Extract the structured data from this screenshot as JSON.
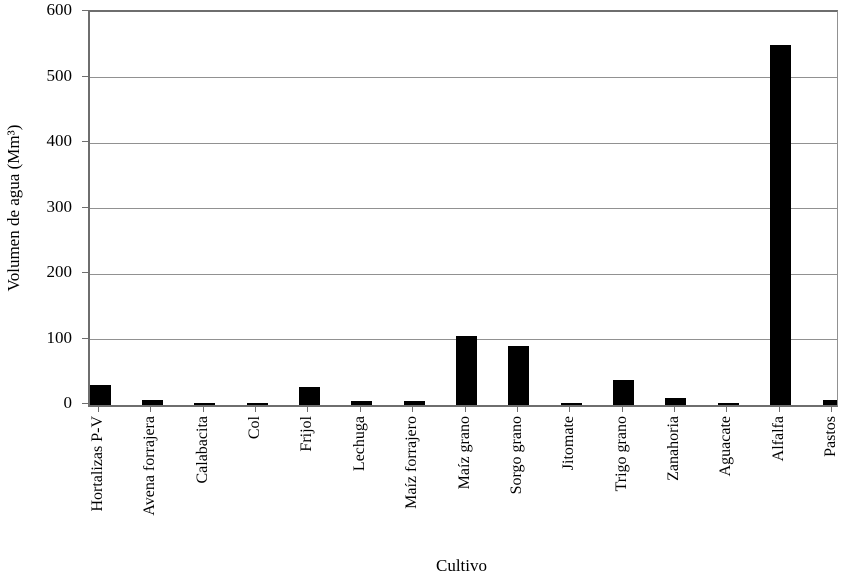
{
  "chart_data": {
    "type": "bar",
    "title": "",
    "categories": [
      "Hortalizas P-V",
      "Avena forrajera",
      "Calabacita",
      "Col",
      "Frijol",
      "Lechuga",
      "Maíz forrajero",
      "Maíz grano",
      "Sorgo grano",
      "Jitomate",
      "Trigo grano",
      "Zanahoria",
      "Aguacate",
      "Alfalfa",
      "Pastos"
    ],
    "values": [
      31,
      8,
      3,
      3,
      27,
      6,
      6,
      105,
      90,
      3,
      38,
      10,
      3,
      550,
      8
    ],
    "xlabel": "Cultivo",
    "ylabel": "Volumen de agua (Mm³)",
    "ylim": [
      0,
      600
    ],
    "yticks": [
      0,
      100,
      200,
      300,
      400,
      500,
      600
    ],
    "grid": "horizontal gridlines at every 100",
    "legend": "none",
    "colors": {
      "bar": "#000000",
      "gridline": "#919191",
      "axis": "#6e6e6e",
      "text": "#000000",
      "background": "#ffffff"
    }
  }
}
